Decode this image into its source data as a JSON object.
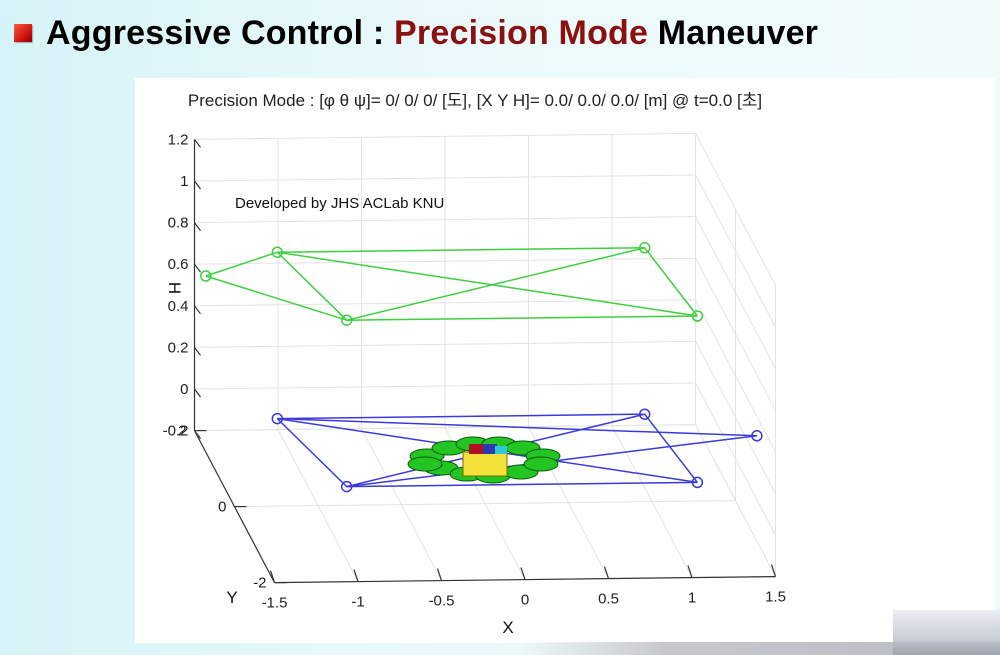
{
  "slide": {
    "title_prefix": "Aggressive Control : ",
    "title_accent": "Precision Mode",
    "title_suffix": " Maneuver",
    "accent_color": "#8b1010"
  },
  "chart_data": {
    "type": "line3d",
    "title": "Precision Mode : [φ θ ψ]= 0/ 0/ 0/ [도], [X Y H]= 0.0/ 0.0/ 0.0/ [m] @ t=0.0 [초]",
    "annotation": "Developed by JHS ACLab KNU",
    "xlabel": "X",
    "ylabel": "Y",
    "zlabel": "H",
    "xlim": [
      -1.5,
      1.5
    ],
    "ylim": [
      -2,
      2
    ],
    "zlim": [
      -0.2,
      1.2
    ],
    "x_ticks": [
      "-1.5",
      "-1",
      "-0.5",
      "0",
      "0.5",
      "1",
      "1.5"
    ],
    "y_ticks": [
      "-2",
      "0",
      "2"
    ],
    "z_ticks": [
      "-0.2",
      "0",
      "0.2",
      "0.4",
      "0.6",
      "0.8",
      "1",
      "1.2"
    ],
    "grid": true,
    "series": [
      {
        "color": "#3ecf3e",
        "points": [
          {
            "x": -1.1,
            "y": 1.2,
            "z": 0.8
          },
          {
            "x": 1.1,
            "y": 1.2,
            "z": 0.8
          },
          {
            "x": 1.2,
            "y": -0.6,
            "z": 0.8
          },
          {
            "x": -0.9,
            "y": -0.6,
            "z": 0.8
          },
          {
            "x": -1.6,
            "y": 0.6,
            "z": 0.8
          }
        ]
      },
      {
        "color": "#3a3ad8",
        "points": [
          {
            "x": -1.1,
            "y": 1.2,
            "z": 0.0
          },
          {
            "x": 1.1,
            "y": 1.2,
            "z": 0.0
          },
          {
            "x": 1.2,
            "y": -0.6,
            "z": 0.0
          },
          {
            "x": -0.9,
            "y": -0.6,
            "z": 0.0
          },
          {
            "x": 1.7,
            "y": 0.6,
            "z": 0.0
          }
        ]
      }
    ],
    "vehicle": {
      "x": 0.0,
      "y": 0.0,
      "z": 0.0,
      "rotor_color": "#22c522",
      "body_color": "#f2e23a"
    }
  }
}
